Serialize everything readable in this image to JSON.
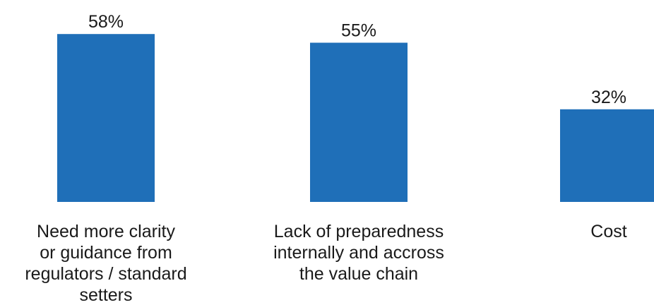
{
  "chart_data": {
    "type": "bar",
    "categories": [
      "Need more clarity or guidance from regulators / standard setters",
      "Lack of preparedness internally and accross the value chain",
      "Cost"
    ],
    "category_lines": [
      [
        "Need more clarity",
        "or guidance from",
        "regulators / standard",
        "setters"
      ],
      [
        "Lack of preparedness",
        "internally and accross",
        "the value chain"
      ],
      [
        "Cost"
      ]
    ],
    "values": [
      58,
      55,
      32
    ],
    "value_labels": [
      "58%",
      "55%",
      "32%"
    ],
    "unit": "%",
    "ylim": [
      0,
      60
    ],
    "grid": false,
    "legend": "none",
    "bar_color": "#1f6fb8"
  }
}
